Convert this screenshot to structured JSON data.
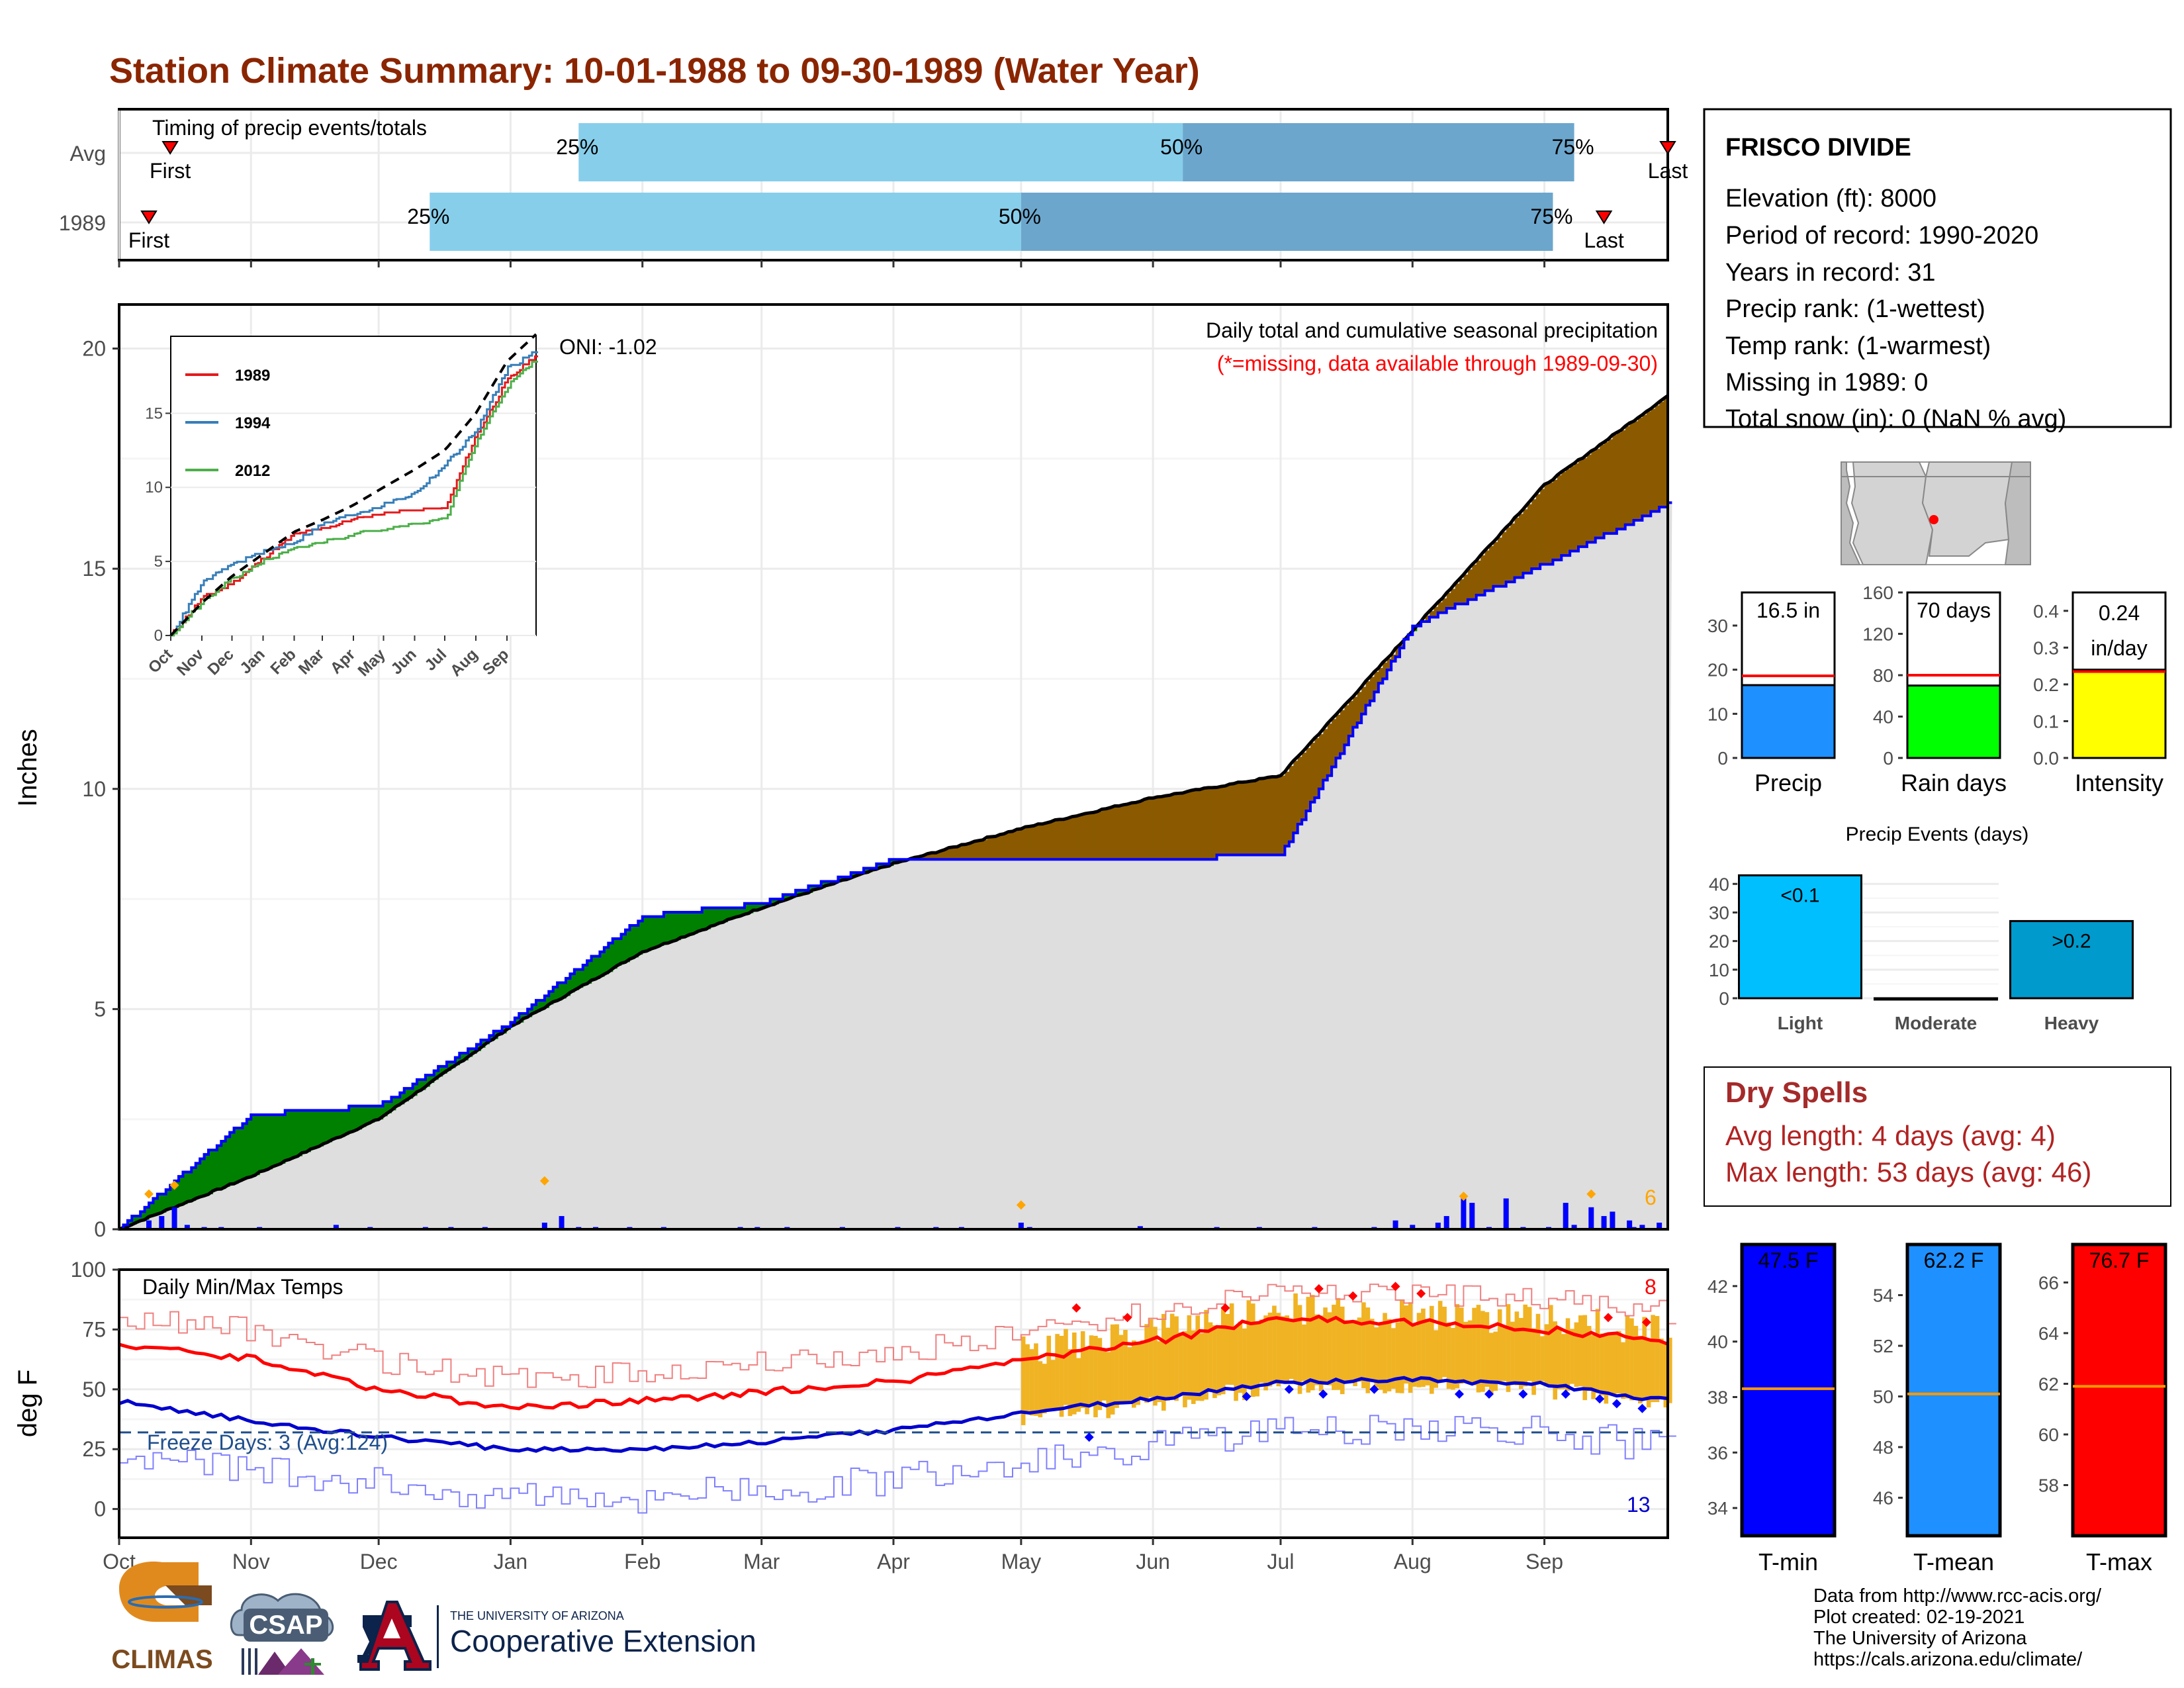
{
  "title": "Station Climate Summary: 10-01-1988 to 09-30-1989 (Water Year)",
  "months": [
    "Oct",
    "Nov",
    "Dec",
    "Jan",
    "Feb",
    "Mar",
    "Apr",
    "May",
    "Jun",
    "Jul",
    "Aug",
    "Sep"
  ],
  "timing": {
    "label": "Timing of precip events/totals",
    "rows": [
      {
        "name": "Avg",
        "first_day": 12,
        "p25_day": 108,
        "p50_day": 250,
        "p75_day": 342,
        "last_day": 364
      },
      {
        "name": "1989",
        "first_day": 7,
        "p25_day": 73,
        "p50_day": 212,
        "p75_day": 337,
        "last_day": 349
      }
    ],
    "first_label": "First",
    "last_label": "Last",
    "p25_label": "25%",
    "p50_label": "50%",
    "p75_label": "75%"
  },
  "station": {
    "name": "FRISCO DIVIDE",
    "elevation": "Elevation (ft): 8000",
    "period": "Period of record: 1990-2020",
    "years": "Years in record: 31",
    "precip_rank": "Precip rank:  (1-wettest)",
    "temp_rank": "Temp rank:  (1-warmest)",
    "missing": "Missing in 1989: 0",
    "snow": "Total snow (in): 0 (NaN % avg)"
  },
  "precip_panel": {
    "ylabel": "Inches",
    "subtitle": "Daily total and cumulative seasonal precipitation",
    "missing_note": "(*=missing, data available through 1989-09-30)",
    "oni": "ONI: -1.02",
    "count_label": "6"
  },
  "inset": {
    "months": [
      "Oct",
      "Nov",
      "Dec",
      "Jan",
      "Feb",
      "Mar",
      "Apr",
      "May",
      "Jun",
      "Jul",
      "Aug",
      "Sep"
    ]
  },
  "temp_panel": {
    "ylabel": "deg F",
    "title": "Daily Min/Max Temps",
    "freeze": "Freeze Days: 3 (Avg:124)",
    "count_high": "8",
    "count_low": "13"
  },
  "bars_small": {
    "precip": {
      "label": "Precip",
      "value": 16.5,
      "avg": 18.6,
      "text": "16.5 in",
      "color": "#1e90ff"
    },
    "raindays": {
      "label": "Rain days",
      "value": 70,
      "avg": 80,
      "text": "70 days",
      "color": "#00ff00"
    },
    "intensity": {
      "label": "Intensity",
      "value": 0.24,
      "avg": 0.235,
      "text1": "0.24",
      "text2": "in/day",
      "color": "#ffff00"
    }
  },
  "events": {
    "title": "Precip Events (days)",
    "categories": [
      "Light",
      "Moderate",
      "Heavy"
    ],
    "values": [
      43,
      0,
      27
    ],
    "labels": [
      "<0.1",
      "",
      ">0.2"
    ]
  },
  "dry": {
    "title": "Dry Spells",
    "avg": "Avg length: 4 days (avg: 4)",
    "max": "Max length: 53 days (avg: 46)"
  },
  "temp_bars": {
    "tmin": {
      "label": "T-min",
      "value": 47.5,
      "text": "47.5 F",
      "avg": 38.3,
      "color": "#0000ff"
    },
    "tmean": {
      "label": "T-mean",
      "value": 62.2,
      "text": "62.2 F",
      "avg": 50.1,
      "color": "#1e90ff"
    },
    "tmax": {
      "label": "T-max",
      "value": 76.7,
      "text": "76.7 F",
      "avg": 61.9,
      "color": "#ff0000"
    }
  },
  "footer": {
    "line1": "Data from http://www.rcc-acis.org/",
    "line2": "Plot created: 02-19-2021",
    "line3": "The University of Arizona",
    "line4": "https://cals.arizona.edu/climate/",
    "climas": "CLIMAS",
    "csap": "CSAP",
    "uofa_small": "THE UNIVERSITY OF ARIZONA",
    "coop": "Cooperative Extension"
  },
  "chart_data": [
    {
      "type": "line",
      "title": "Daily total and cumulative seasonal precipitation",
      "ylabel": "Inches",
      "ylim": [
        0,
        21
      ],
      "x": [
        "Oct",
        "Nov",
        "Dec",
        "Jan",
        "Feb",
        "Mar",
        "Apr",
        "May",
        "Jun",
        "Jul",
        "Aug",
        "Sep",
        "end"
      ],
      "series": [
        {
          "name": "1989",
          "values": [
            0.0,
            2.6,
            2.8,
            4.7,
            7.1,
            7.4,
            8.4,
            8.4,
            8.4,
            8.5,
            13.7,
            15.1,
            16.5
          ]
        },
        {
          "values": [
            0.0,
            1.2,
            2.5,
            4.6,
            6.3,
            7.3,
            8.3,
            9.1,
            9.8,
            10.3,
            13.6,
            16.9,
            19.0
          ]
        }
      ]
    },
    {
      "type": "line",
      "title": "Daily Min/Max Temps",
      "ylabel": "deg F",
      "ylim": [
        -12,
        100
      ],
      "x": [
        "Oct",
        "Nov",
        "Dec",
        "Jan",
        "Feb",
        "Mar",
        "Apr",
        "May",
        "Jun",
        "Jul",
        "Aug",
        "Sep",
        "end"
      ],
      "series": [
        {
          "values": [
            68,
            63,
            50,
            42,
            45,
            49,
            53,
            62,
            70,
            80,
            78,
            75,
            70
          ]
        },
        {
          "values": [
            45,
            37,
            30,
            25,
            25,
            28,
            33,
            40,
            46,
            53,
            54,
            52,
            45
          ]
        }
      ]
    },
    {
      "type": "bar",
      "title": "Precip Events (days)",
      "categories": [
        "Light",
        "Moderate",
        "Heavy"
      ],
      "values": [
        43,
        0,
        27
      ]
    }
  ]
}
